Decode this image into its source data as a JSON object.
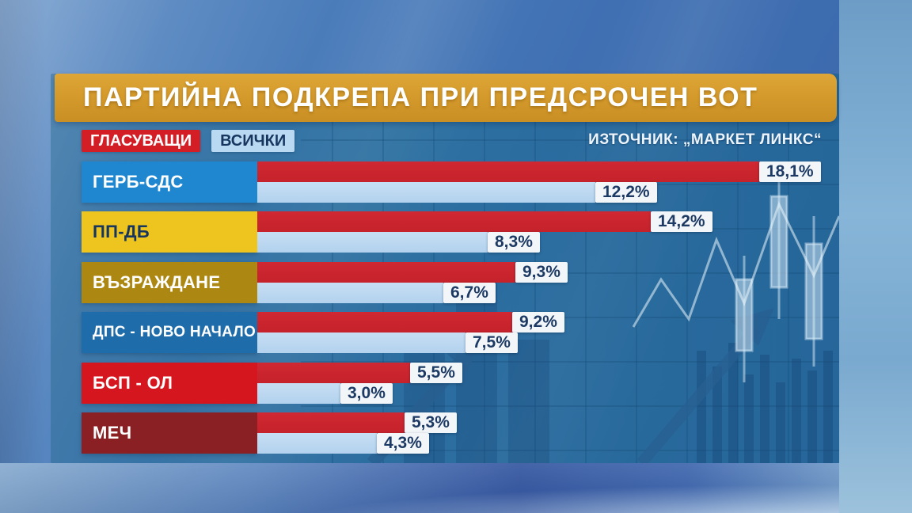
{
  "title": "ПАРТИЙНА ПОДКРЕПА ПРИ ПРЕДСРОЧЕН ВОТ",
  "source": "ИЗТОЧНИК: „МАРКЕТ ЛИНКС“",
  "legend": [
    {
      "label": "ГЛАСУВАЩИ",
      "color": "#d41e26",
      "text_color": "#ffffff"
    },
    {
      "label": "ВСИЧКИ",
      "color": "#b9d9f2",
      "text_color": "#16365f"
    }
  ],
  "colors": {
    "title_bg": "#d3982a",
    "panel_tint": "#2f7fa0",
    "value_chip_bg": "#f3f6f9",
    "value_chip_text": "#1c3a64"
  },
  "chart_data": {
    "type": "bar",
    "orientation": "horizontal",
    "title": "ПАРТИЙНА ПОДКРЕПА ПРИ ПРЕДСРОЧЕН ВОТ",
    "source": "„МАРКЕТ ЛИНКС“",
    "xlim": [
      0,
      21
    ],
    "grid": false,
    "legend_position": "top-left",
    "categories": [
      "ГЕРБ-СДС",
      "ПП-ДБ",
      "ВЪЗРАЖДАНЕ",
      "ДПС - НОВО НАЧАЛО",
      "БСП - ОЛ",
      "МЕЧ"
    ],
    "category_colors": [
      "#1e87d0",
      "#eec51e",
      "#ac8812",
      "#1f6cab",
      "#d5161f",
      "#8a2023"
    ],
    "category_text_colors": [
      "#ffffff",
      "#16365f",
      "#ffffff",
      "#ffffff",
      "#ffffff",
      "#ffffff"
    ],
    "series": [
      {
        "name": "ГЛАСУВАЩИ",
        "color": "#c5222b",
        "values": [
          18.1,
          14.2,
          9.3,
          9.2,
          5.5,
          5.3
        ],
        "labels": [
          "18,1%",
          "14,2%",
          "9,3%",
          "9,2%",
          "5,5%",
          "5,3%"
        ]
      },
      {
        "name": "ВСИЧКИ",
        "color": "#b3d2ee",
        "values": [
          12.2,
          8.3,
          6.7,
          7.5,
          3.0,
          4.3
        ],
        "labels": [
          "12,2%",
          "8,3%",
          "6,7%",
          "7,5%",
          "3,0%",
          "4,3%"
        ]
      }
    ]
  }
}
